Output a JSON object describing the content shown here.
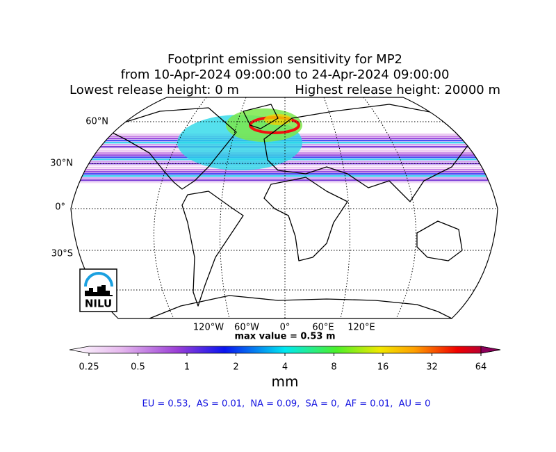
{
  "title": {
    "lines": [
      "Footprint emission sensitivity for MP2",
      "from 10-Apr-2024 09:00:00 to 24-Apr-2024 09:00:00"
    ],
    "release_low": "Lowest release height: 0 m",
    "release_high": "Highest release height: 20000 m"
  },
  "map": {
    "lat_labels": [
      "60°N",
      "30°N",
      "0°",
      "30°S"
    ],
    "lon_labels": [
      "120°W",
      "60°W",
      "0°",
      "60°E",
      "120°E"
    ],
    "max_value": "max value = 0.53 m"
  },
  "logo": {
    "text": "NILU"
  },
  "colorbar": {
    "ticks": [
      0.25,
      0.5,
      1,
      2,
      4,
      8,
      16,
      32,
      64
    ],
    "unit": "mm"
  },
  "summary": "EU = 0.53,  AS = 0.01,  NA = 0.09,  SA = 0,  AF = 0.01,  AU = 0"
}
